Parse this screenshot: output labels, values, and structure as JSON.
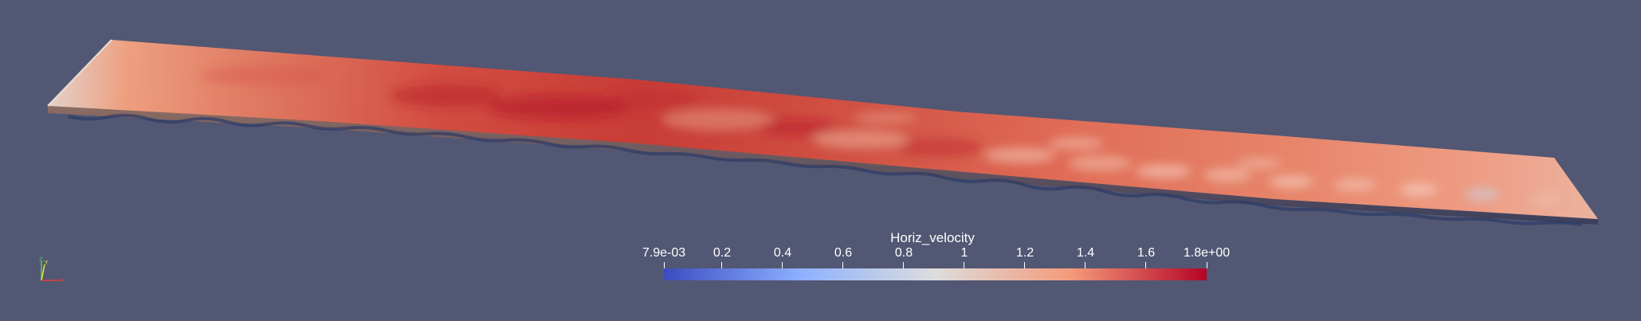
{
  "colorbar": {
    "title": "Horiz_velocity",
    "range": [
      0.0079,
      1.8
    ],
    "ticks": [
      {
        "value": 0.0079,
        "label": "7.9e-03"
      },
      {
        "value": 0.2,
        "label": "0.2"
      },
      {
        "value": 0.4,
        "label": "0.4"
      },
      {
        "value": 0.6,
        "label": "0.6"
      },
      {
        "value": 0.8,
        "label": "0.8"
      },
      {
        "value": 1.0,
        "label": "1"
      },
      {
        "value": 1.2,
        "label": "1.2"
      },
      {
        "value": 1.4,
        "label": "1.4"
      },
      {
        "value": 1.6,
        "label": "1.6"
      },
      {
        "value": 1.8,
        "label": "1.8e+00"
      }
    ],
    "colors": {
      "low": "#3b4cc0",
      "mid": "#dddddd",
      "high": "#b40426"
    }
  },
  "background_color": "#525773",
  "axes_colors": {
    "x": "#e0403a",
    "y": "#e6e64a",
    "z": "#4ad44a"
  }
}
